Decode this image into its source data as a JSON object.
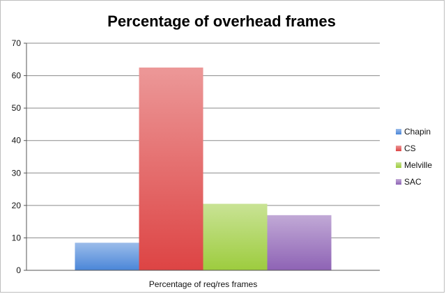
{
  "chart_data": {
    "type": "bar",
    "title": "Percentage of overhead frames",
    "xlabel": "",
    "ylabel": "",
    "categories": [
      "Percentage of req/res frames"
    ],
    "series": [
      {
        "name": "Chapin",
        "values": [
          8.5
        ],
        "color": "#4a86d8"
      },
      {
        "name": "CS",
        "values": [
          62.5
        ],
        "color": "#dd4444"
      },
      {
        "name": "Melville",
        "values": [
          20.5
        ],
        "color": "#9dcc3e"
      },
      {
        "name": "SAC",
        "values": [
          17.0
        ],
        "color": "#8e63b5"
      }
    ],
    "ylim": [
      0,
      70
    ],
    "yticks": [
      0,
      10,
      20,
      30,
      40,
      50,
      60,
      70
    ],
    "grid": true,
    "legend": "right"
  }
}
